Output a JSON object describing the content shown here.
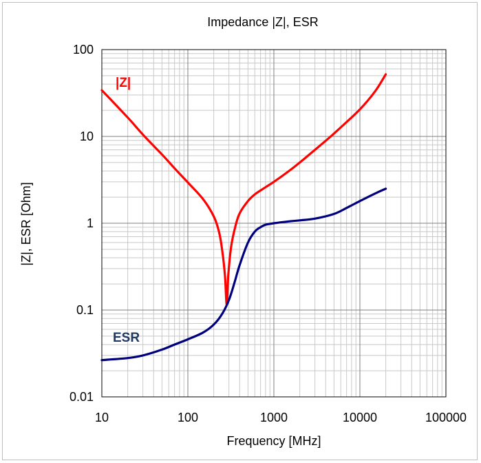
{
  "chart_data": {
    "type": "line",
    "title": "Impedance |Z|,  ESR",
    "xlabel": "Frequency [MHz]",
    "ylabel": "|Z|, ESR [Ohm]",
    "x_scale": "log",
    "y_scale": "log",
    "xlim": [
      10,
      100000
    ],
    "ylim": [
      0.01,
      100
    ],
    "grid": true,
    "x_ticks": [
      "10",
      "100",
      "1000",
      "10000",
      "100000"
    ],
    "y_ticks": [
      "0.01",
      "0.1",
      "1",
      "10",
      "100"
    ],
    "series": [
      {
        "name": "|Z|",
        "color": "#ff0000",
        "label_text": "|Z|",
        "points": [
          [
            10,
            34
          ],
          [
            20,
            16.5
          ],
          [
            30,
            10.5
          ],
          [
            50,
            6.2
          ],
          [
            70,
            4.3
          ],
          [
            100,
            2.95
          ],
          [
            150,
            1.9
          ],
          [
            200,
            1.2
          ],
          [
            230,
            0.8
          ],
          [
            250,
            0.5
          ],
          [
            270,
            0.25
          ],
          [
            283,
            0.115
          ],
          [
            295,
            0.25
          ],
          [
            320,
            0.55
          ],
          [
            360,
            0.95
          ],
          [
            400,
            1.3
          ],
          [
            500,
            1.8
          ],
          [
            600,
            2.15
          ],
          [
            800,
            2.6
          ],
          [
            1000,
            3.0
          ],
          [
            1500,
            4.0
          ],
          [
            2000,
            5.0
          ],
          [
            3000,
            7.0
          ],
          [
            5000,
            10.8
          ],
          [
            10000,
            20.5
          ],
          [
            15000,
            33
          ],
          [
            20000,
            52
          ]
        ]
      },
      {
        "name": "ESR",
        "color": "#00007f",
        "label_text": "ESR",
        "points": [
          [
            10,
            0.0265
          ],
          [
            20,
            0.028
          ],
          [
            30,
            0.03
          ],
          [
            50,
            0.035
          ],
          [
            70,
            0.04
          ],
          [
            100,
            0.046
          ],
          [
            150,
            0.055
          ],
          [
            200,
            0.068
          ],
          [
            250,
            0.09
          ],
          [
            300,
            0.13
          ],
          [
            350,
            0.21
          ],
          [
            400,
            0.33
          ],
          [
            500,
            0.6
          ],
          [
            600,
            0.8
          ],
          [
            700,
            0.9
          ],
          [
            800,
            0.96
          ],
          [
            1000,
            1.0
          ],
          [
            1500,
            1.05
          ],
          [
            2000,
            1.08
          ],
          [
            3000,
            1.13
          ],
          [
            5000,
            1.28
          ],
          [
            7000,
            1.5
          ],
          [
            10000,
            1.8
          ],
          [
            15000,
            2.2
          ],
          [
            20000,
            2.5
          ]
        ]
      }
    ]
  }
}
